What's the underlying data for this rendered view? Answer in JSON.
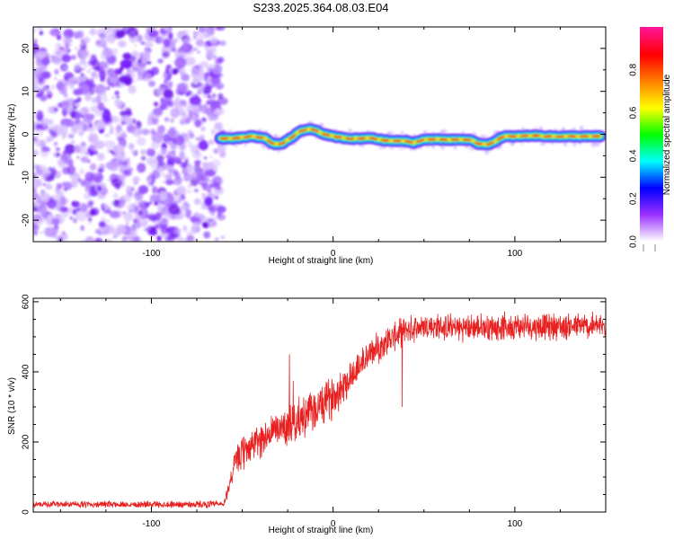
{
  "title": "S233.2025.364.08.03.E04",
  "chart_data": [
    {
      "type": "heatmap",
      "name": "spectrogram",
      "xlabel": "Height of straight line (km)",
      "ylabel": "Frequency (Hz)",
      "xlim": [
        -165,
        150
      ],
      "ylim": [
        -25,
        25
      ],
      "xticks": [
        -100,
        0,
        100
      ],
      "yticks": [
        -20,
        -10,
        0,
        10,
        20
      ],
      "noise_region_x": [
        -165,
        -62
      ],
      "signal_track": {
        "x": [
          -62,
          -55,
          -45,
          -38,
          -33,
          -28,
          -22,
          -18,
          -14,
          -10,
          -6,
          -2,
          0,
          5,
          10,
          15,
          20,
          25,
          30,
          35,
          40,
          44,
          46,
          50,
          55,
          60,
          65,
          70,
          75,
          80,
          85,
          88,
          92,
          95,
          100,
          110,
          120,
          130,
          140,
          148
        ],
        "freq_hz": [
          -1,
          -1,
          -0.5,
          -0.8,
          -2.3,
          -2.2,
          -0.5,
          0.8,
          1.2,
          1,
          0.2,
          -0.3,
          -0.5,
          -0.8,
          -1,
          -1,
          -0.8,
          -1.2,
          -1.5,
          -1.5,
          -1.5,
          -2,
          -1.8,
          -1.2,
          -1.2,
          -1.2,
          -1.3,
          -1.2,
          -1.3,
          -2.2,
          -2.3,
          -2,
          -0.8,
          -0.5,
          -0.5,
          -0.3,
          -0.5,
          -0.5,
          -0.5,
          -0.5
        ]
      },
      "colorbar": {
        "label": "Normalized spectral amplitude",
        "range": [
          0,
          1
        ],
        "ticks": [
          0.0,
          0.2,
          0.4,
          0.6,
          0.8
        ],
        "colors": [
          "#ffffff",
          "#9b30ff",
          "#0000ff",
          "#00ffff",
          "#00ff00",
          "#ffff00",
          "#ff8000",
          "#ff0000",
          "#ff1493"
        ]
      }
    },
    {
      "type": "line",
      "name": "snr",
      "xlabel": "Height of straight line (km)",
      "ylabel": "SNR (10 * v/v)",
      "xlim": [
        -165,
        150
      ],
      "ylim": [
        0,
        610
      ],
      "xticks": [
        -100,
        0,
        100
      ],
      "yticks": [
        0,
        200,
        400,
        600
      ],
      "color": "#e82020",
      "series_profile": {
        "x": [
          -165,
          -60,
          -54,
          -50,
          -45,
          -40,
          -30,
          -20,
          -10,
          0,
          10,
          15,
          20,
          25,
          30,
          40,
          50,
          70,
          100,
          150
        ],
        "mean": [
          22,
          22,
          140,
          165,
          190,
          205,
          240,
          260,
          290,
          330,
          390,
          420,
          450,
          470,
          490,
          520,
          530,
          525,
          530,
          530
        ],
        "spread": [
          10,
          12,
          45,
          60,
          55,
          60,
          60,
          70,
          70,
          70,
          60,
          55,
          50,
          50,
          50,
          45,
          45,
          45,
          45,
          45
        ]
      },
      "spikes": [
        {
          "x": -24,
          "y": 450
        },
        {
          "x": -22,
          "y": 375
        },
        {
          "x": 38,
          "y": 300
        }
      ]
    }
  ]
}
